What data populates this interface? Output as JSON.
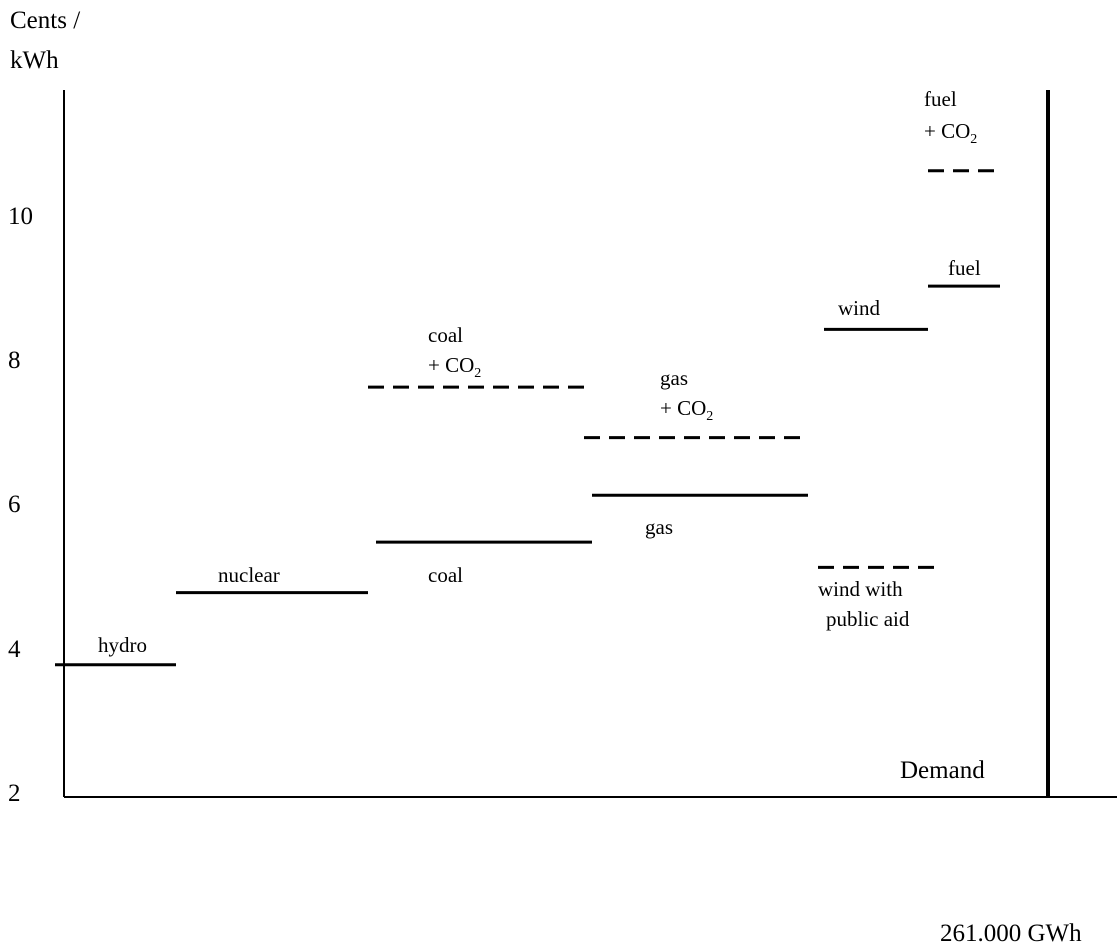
{
  "chart_data": {
    "type": "line",
    "title": "",
    "ylabel": [
      "Cents /",
      "kWh"
    ],
    "xlabel": "261.000 GWh",
    "yticks": [
      "10",
      "8",
      "6",
      "4",
      "2"
    ],
    "ylim": [
      1.2,
      11.5
    ],
    "demand_label": "Demand",
    "segments": [
      {
        "name": "hydro",
        "y": 3.75,
        "style": "solid"
      },
      {
        "name": "nuclear",
        "y": 4.75,
        "style": "solid"
      },
      {
        "name": "coal",
        "y": 5.45,
        "style": "solid"
      },
      {
        "name": "coal + CO2",
        "y": 7.6,
        "style": "dashed"
      },
      {
        "name": "gas",
        "y": 6.1,
        "style": "solid"
      },
      {
        "name": "gas + CO2",
        "y": 6.9,
        "style": "dashed"
      },
      {
        "name": "wind",
        "y": 8.4,
        "style": "solid"
      },
      {
        "name": "wind with public aid",
        "y": 5.1,
        "style": "dashed"
      },
      {
        "name": "fuel",
        "y": 9.0,
        "style": "solid"
      },
      {
        "name": "fuel + CO2",
        "y": 10.6,
        "style": "dashed"
      }
    ],
    "labels": {
      "hydro": "hydro",
      "nuclear": "nuclear",
      "coal": "coal",
      "coal_co2": [
        "coal",
        "+ CO",
        "2"
      ],
      "gas": "gas",
      "gas_co2": [
        "gas",
        "+ CO",
        "2"
      ],
      "wind": "wind",
      "wind_aid": [
        "wind with",
        "public aid"
      ],
      "fuel": "fuel",
      "fuel_co2": [
        "fuel",
        "+ CO",
        "2"
      ]
    }
  }
}
